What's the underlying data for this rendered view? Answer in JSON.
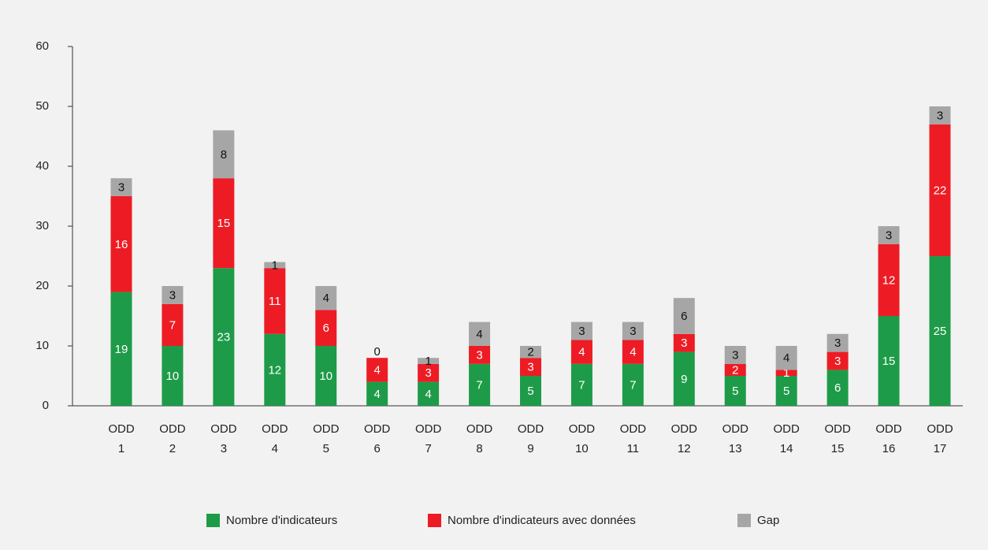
{
  "chart_data": {
    "type": "stacked_bar",
    "categories": [
      "ODD 1",
      "ODD 2",
      "ODD 3",
      "ODD 4",
      "ODD 5",
      "ODD 6",
      "ODD 7",
      "ODD 8",
      "ODD 9",
      "ODD 10",
      "ODD 11",
      "ODD 12",
      "ODD 13",
      "ODD 14",
      "ODD 15",
      "ODD 16",
      "ODD 17"
    ],
    "series": [
      {
        "name": "Nombre d'indicateurs",
        "color": "#1e9b48",
        "values": [
          19,
          10,
          23,
          12,
          10,
          4,
          4,
          7,
          5,
          7,
          7,
          9,
          5,
          5,
          6,
          15,
          25
        ]
      },
      {
        "name": "Nombre d'indicateurs avec données",
        "color": "#ed1c24",
        "values": [
          16,
          7,
          15,
          11,
          6,
          4,
          3,
          3,
          3,
          4,
          4,
          3,
          2,
          1,
          3,
          12,
          22
        ]
      },
      {
        "name": "Gap",
        "color": "#a6a6a7",
        "values": [
          3,
          3,
          8,
          1,
          4,
          0,
          1,
          4,
          2,
          3,
          3,
          6,
          3,
          4,
          3,
          3,
          3
        ]
      }
    ],
    "ylim": [
      0,
      60
    ],
    "yticks": [
      0,
      10,
      20,
      30,
      40,
      50,
      60
    ],
    "legend": "bottom"
  }
}
